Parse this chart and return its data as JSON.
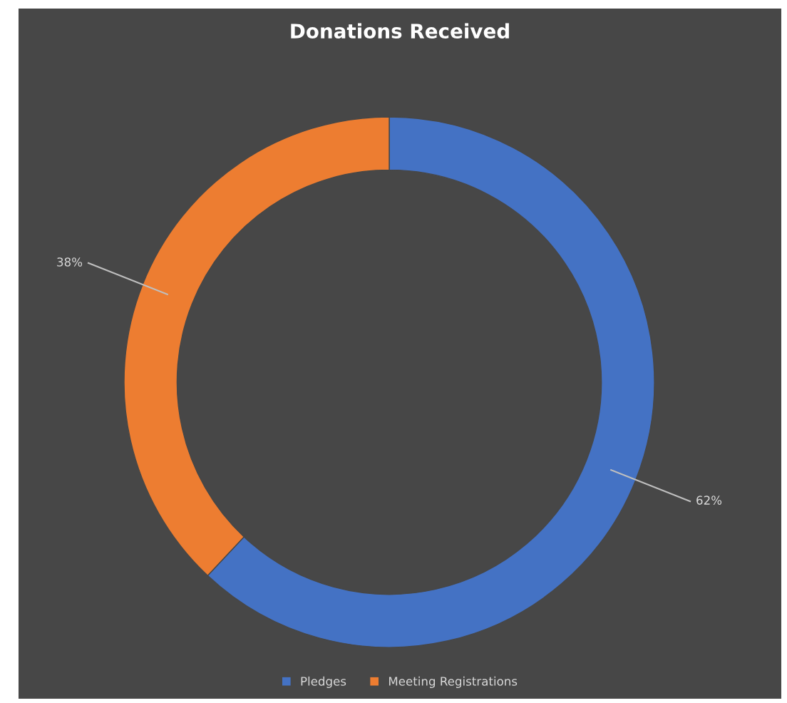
{
  "chart_data": {
    "type": "donut",
    "title": "Donations Received",
    "categories": [
      "Pledges",
      "Meeting Registrations"
    ],
    "values": [
      62,
      38
    ],
    "colors": [
      "#4472c4",
      "#ed7d31"
    ],
    "value_labels": [
      "62%",
      "38%"
    ],
    "legend": "bottom"
  }
}
